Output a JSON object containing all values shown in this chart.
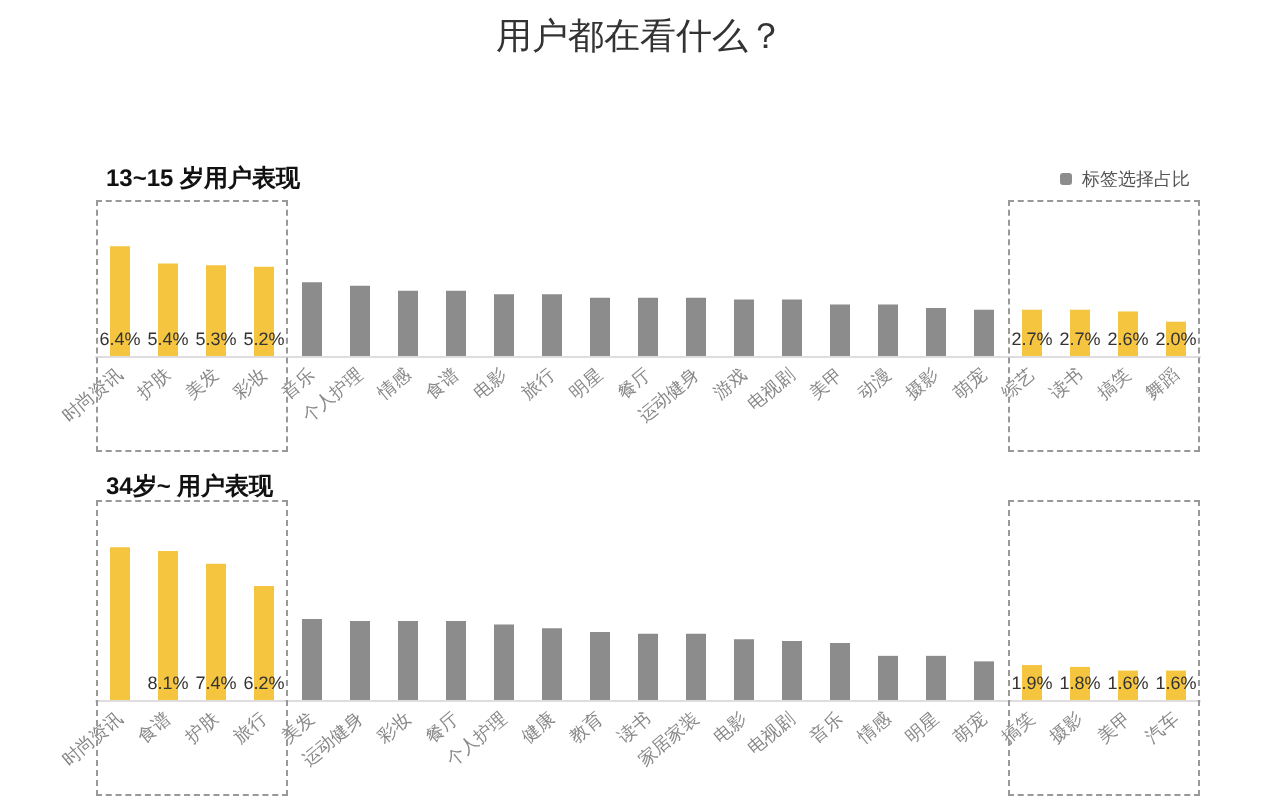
{
  "chart_data": [
    {
      "type": "bar",
      "title": "13~15 岁用户表现",
      "annotations": [
        "用户都在看什么？"
      ],
      "legend": "top right",
      "categories": [
        "时尚资讯",
        "护肤",
        "美发",
        "彩妆",
        "音乐",
        "个人护理",
        "情感",
        "食谱",
        "电影",
        "旅行",
        "明星",
        "餐厅",
        "运动健身",
        "游戏",
        "电视剧",
        "美甲",
        "动漫",
        "摄影",
        "萌宠",
        "综艺",
        "读书",
        "搞笑",
        "舞蹈"
      ],
      "series": [
        {
          "name": "标签选择占比",
          "color": "#8c8c8c",
          "values": [
            6.4,
            5.4,
            5.3,
            5.2,
            4.3,
            4.1,
            3.8,
            3.8,
            3.6,
            3.6,
            3.4,
            3.4,
            3.4,
            3.3,
            3.3,
            3.0,
            3.0,
            2.8,
            2.7,
            2.7,
            2.7,
            2.6,
            2.0
          ],
          "colors": [
            "#f5c540",
            "#f5c540",
            "#f5c540",
            "#f5c540",
            "#8c8c8c",
            "#8c8c8c",
            "#8c8c8c",
            "#8c8c8c",
            "#8c8c8c",
            "#8c8c8c",
            "#8c8c8c",
            "#8c8c8c",
            "#8c8c8c",
            "#8c8c8c",
            "#8c8c8c",
            "#8c8c8c",
            "#8c8c8c",
            "#8c8c8c",
            "#8c8c8c",
            "#f5c540",
            "#f5c540",
            "#f5c540",
            "#f5c540"
          ],
          "value_labels": [
            "6.4%",
            "5.4%",
            "5.3%",
            "5.2%",
            null,
            null,
            null,
            null,
            null,
            null,
            null,
            null,
            null,
            null,
            null,
            null,
            null,
            null,
            null,
            "2.7%",
            "2.7%",
            "2.6%",
            "2.0%"
          ]
        }
      ]
    },
    {
      "type": "bar",
      "title": "34岁~ 用户表现",
      "categories": [
        "时尚资讯",
        "食谱",
        "护肤",
        "旅行",
        "美发",
        "运动健身",
        "彩妆",
        "餐厅",
        "个人护理",
        "健康",
        "教育",
        "读书",
        "家居家装",
        "电影",
        "电视剧",
        "音乐",
        "情感",
        "明星",
        "萌宠",
        "搞笑",
        "摄影",
        "美甲",
        "汽车"
      ],
      "series": [
        {
          "color": "#8c8c8c",
          "values": [
            8.3,
            8.1,
            7.4,
            6.2,
            4.4,
            4.3,
            4.3,
            4.3,
            4.1,
            3.9,
            3.7,
            3.6,
            3.6,
            3.3,
            3.2,
            3.1,
            2.4,
            2.4,
            2.1,
            1.9,
            1.8,
            1.6,
            1.6
          ],
          "colors": [
            "#f5c540",
            "#f5c540",
            "#f5c540",
            "#f5c540",
            "#8c8c8c",
            "#8c8c8c",
            "#8c8c8c",
            "#8c8c8c",
            "#8c8c8c",
            "#8c8c8c",
            "#8c8c8c",
            "#8c8c8c",
            "#8c8c8c",
            "#8c8c8c",
            "#8c8c8c",
            "#8c8c8c",
            "#8c8c8c",
            "#8c8c8c",
            "#8c8c8c",
            "#f5c540",
            "#f5c540",
            "#f5c540",
            "#f5c540"
          ],
          "value_labels": [
            null,
            "8.1%",
            "7.4%",
            "6.2%",
            null,
            null,
            null,
            null,
            null,
            null,
            null,
            null,
            null,
            null,
            null,
            null,
            null,
            null,
            null,
            "1.9%",
            "1.8%",
            "1.6%",
            "1.6%"
          ]
        }
      ]
    }
  ]
}
